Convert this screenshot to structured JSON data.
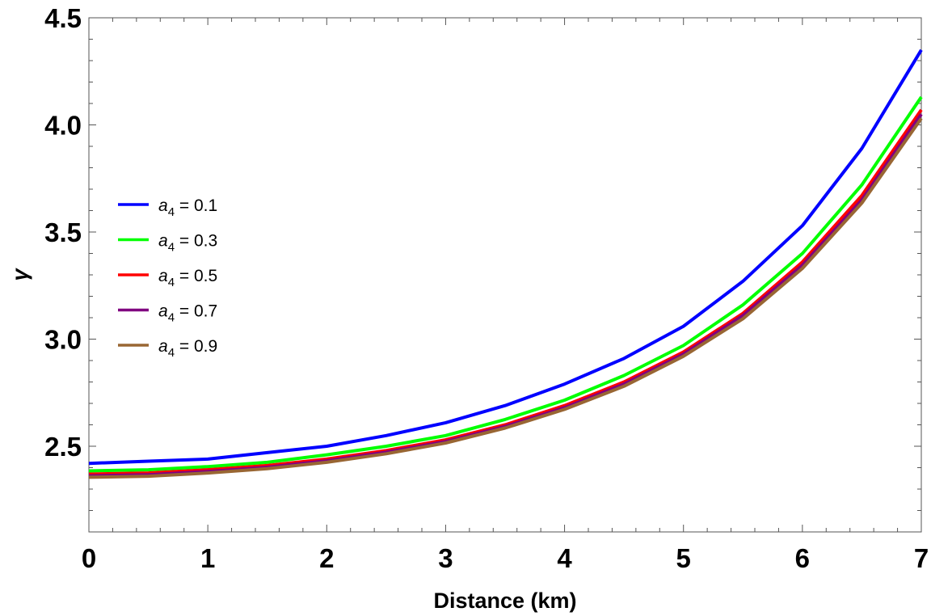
{
  "chart_data": {
    "type": "line",
    "title": "",
    "xlabel": "Distance (km)",
    "ylabel": "γ",
    "xlim": [
      0,
      7
    ],
    "ylim": [
      2.1,
      4.5
    ],
    "x_ticks": [
      "0",
      "1",
      "2",
      "3",
      "4",
      "5",
      "6",
      "7"
    ],
    "y_ticks": [
      "2.5",
      "3.0",
      "3.5",
      "4.0",
      "4.5"
    ],
    "grid": false,
    "legend_position": "left-middle",
    "legend_var": "a",
    "legend_sub": "4",
    "x": [
      0,
      0.5,
      1,
      1.5,
      2,
      2.5,
      3,
      3.5,
      4,
      4.5,
      5,
      5.5,
      6,
      6.5,
      7
    ],
    "series": [
      {
        "name": "0.1",
        "color": "#0000ff",
        "values": [
          2.42,
          2.43,
          2.44,
          2.47,
          2.5,
          2.55,
          2.61,
          2.69,
          2.79,
          2.91,
          3.06,
          3.27,
          3.53,
          3.89,
          4.35
        ]
      },
      {
        "name": "0.3",
        "color": "#00ff00",
        "values": [
          2.385,
          2.39,
          2.405,
          2.425,
          2.46,
          2.5,
          2.55,
          2.625,
          2.715,
          2.83,
          2.97,
          3.16,
          3.4,
          3.72,
          4.13
        ]
      },
      {
        "name": "0.5",
        "color": "#ff0000",
        "values": [
          2.37,
          2.375,
          2.39,
          2.41,
          2.44,
          2.48,
          2.53,
          2.6,
          2.69,
          2.8,
          2.94,
          3.12,
          3.36,
          3.67,
          4.07
        ]
      },
      {
        "name": "0.7",
        "color": "#800080",
        "values": [
          2.362,
          2.367,
          2.382,
          2.402,
          2.432,
          2.472,
          2.522,
          2.592,
          2.68,
          2.79,
          2.93,
          3.11,
          3.345,
          3.65,
          4.05
        ]
      },
      {
        "name": "0.9",
        "color": "#996633",
        "values": [
          2.355,
          2.36,
          2.375,
          2.395,
          2.425,
          2.465,
          2.515,
          2.585,
          2.672,
          2.78,
          2.92,
          3.095,
          3.33,
          3.635,
          4.03
        ]
      }
    ]
  }
}
